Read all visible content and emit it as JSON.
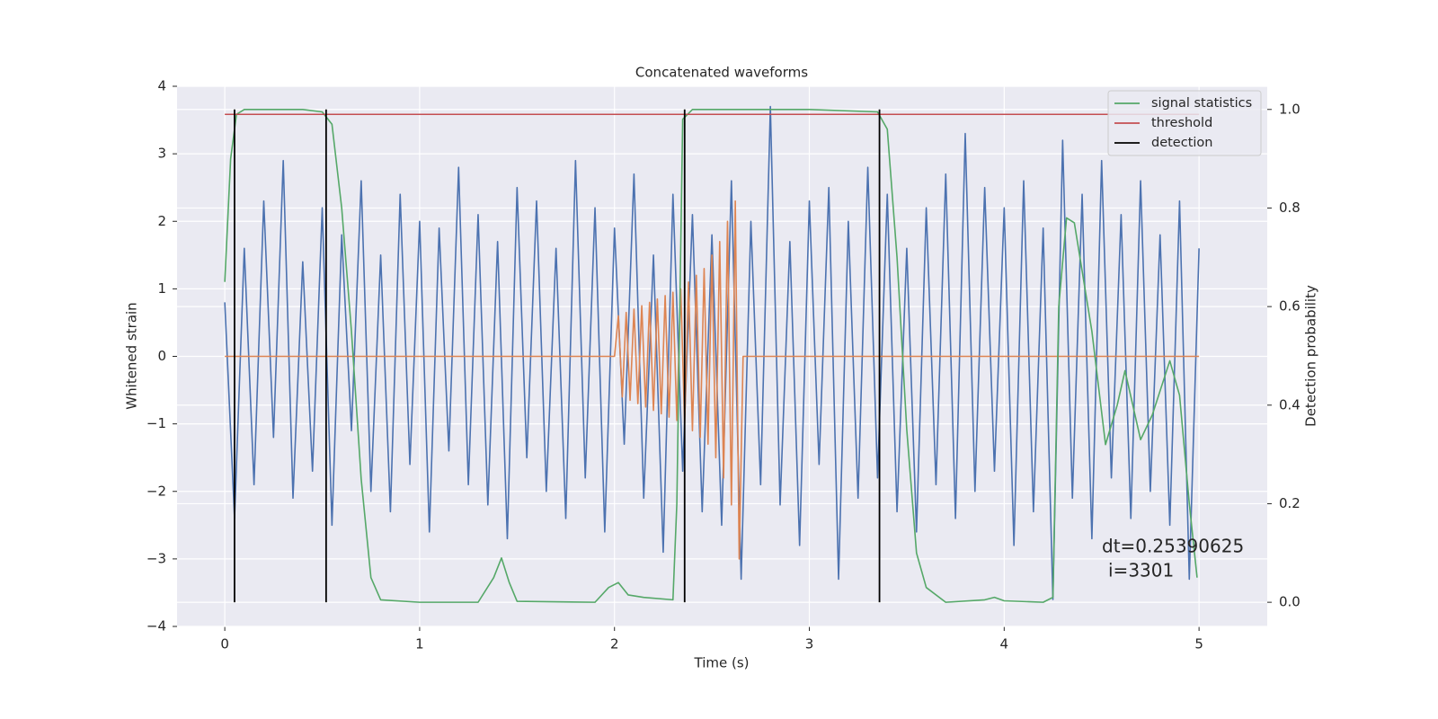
{
  "chart_data": {
    "type": "line",
    "title": "Concatenated waveforms",
    "xlabel": "Time (s)",
    "ylabel": "Whitened strain",
    "y2label": "Detection probability",
    "xlim": [
      -0.245,
      5.35
    ],
    "ylim": [
      -4.0,
      4.0
    ],
    "y2lim": [
      -0.049,
      1.047
    ],
    "xticks": [
      0,
      1,
      2,
      3,
      4,
      5
    ],
    "yticks": [
      {
        "value": -4,
        "label": "−4"
      },
      {
        "value": -3,
        "label": "−3"
      },
      {
        "value": -2,
        "label": "−2"
      },
      {
        "value": -1,
        "label": "−1"
      },
      0,
      1,
      2,
      3,
      4
    ],
    "y2ticks": [
      {
        "value": 0,
        "label": "0.0"
      },
      0.2,
      0.4,
      0.6,
      0.8,
      {
        "value": 1,
        "label": "1.0"
      }
    ],
    "grid": true,
    "legend": "upper right",
    "annotations": [
      "dt=0.25390625",
      "i=3301"
    ],
    "series": [
      {
        "color": "#4c72b0",
        "x": [
          0,
          0.05,
          0.1,
          0.15,
          0.2,
          0.25,
          0.3,
          0.35,
          0.4,
          0.45,
          0.5,
          0.55,
          0.6,
          0.65,
          0.7,
          0.75,
          0.8,
          0.85,
          0.9,
          0.95,
          1.0,
          1.05,
          1.1,
          1.15,
          1.2,
          1.25,
          1.3,
          1.35,
          1.4,
          1.45,
          1.5,
          1.55,
          1.6,
          1.65,
          1.7,
          1.75,
          1.8,
          1.85,
          1.9,
          1.95,
          2.0,
          2.05,
          2.1,
          2.15,
          2.2,
          2.25,
          2.3,
          2.35,
          2.4,
          2.45,
          2.5,
          2.55,
          2.6,
          2.65,
          2.7,
          2.75,
          2.8,
          2.85,
          2.9,
          2.95,
          3.0,
          3.05,
          3.1,
          3.15,
          3.2,
          3.25,
          3.3,
          3.35,
          3.4,
          3.45,
          3.5,
          3.55,
          3.6,
          3.65,
          3.7,
          3.75,
          3.8,
          3.85,
          3.9,
          3.95,
          4.0,
          4.05,
          4.1,
          4.15,
          4.2,
          4.25,
          4.3,
          4.35,
          4.4,
          4.45,
          4.5,
          4.55,
          4.6,
          4.65,
          4.7,
          4.75,
          4.8,
          4.85,
          4.9,
          4.95,
          5.0
        ],
        "values": [
          0.8,
          -2.4,
          1.6,
          -1.9,
          2.3,
          -1.2,
          2.9,
          -2.1,
          1.4,
          -1.7,
          2.2,
          -2.5,
          1.8,
          -1.1,
          2.6,
          -2.0,
          1.5,
          -2.3,
          2.4,
          -1.6,
          2.0,
          -2.6,
          1.9,
          -1.4,
          2.8,
          -1.9,
          2.1,
          -2.2,
          1.7,
          -2.7,
          2.5,
          -1.5,
          2.3,
          -2.0,
          1.6,
          -2.4,
          2.9,
          -1.8,
          2.2,
          -2.6,
          1.9,
          -1.3,
          2.7,
          -2.1,
          1.5,
          -2.9,
          2.4,
          -1.7,
          2.1,
          -2.3,
          1.8,
          -2.5,
          2.6,
          -3.3,
          2.0,
          -1.9,
          3.7,
          -2.2,
          1.7,
          -2.8,
          2.3,
          -1.6,
          2.5,
          -3.3,
          2.0,
          -2.1,
          2.8,
          -1.8,
          2.4,
          -2.3,
          1.6,
          -2.6,
          2.2,
          -1.9,
          2.7,
          -2.4,
          3.3,
          -2.0,
          2.5,
          -1.7,
          2.2,
          -2.8,
          2.6,
          -2.3,
          1.9,
          -3.6,
          3.2,
          -2.1,
          2.4,
          -2.7,
          2.9,
          -1.8,
          2.1,
          -2.4,
          2.6,
          -2.0,
          1.8,
          -2.5,
          2.3,
          -3.3,
          1.6
        ]
      },
      {
        "color": "#dd8452",
        "x": [
          0,
          2.0,
          2.02,
          2.04,
          2.06,
          2.08,
          2.1,
          2.12,
          2.14,
          2.16,
          2.18,
          2.2,
          2.22,
          2.24,
          2.26,
          2.28,
          2.3,
          2.32,
          2.34,
          2.36,
          2.38,
          2.4,
          2.42,
          2.44,
          2.46,
          2.48,
          2.5,
          2.52,
          2.54,
          2.56,
          2.58,
          2.6,
          2.62,
          2.64,
          2.66,
          5
        ],
        "values": [
          0,
          0,
          0.6,
          -0.6,
          0.65,
          -0.65,
          0.7,
          -0.7,
          0.75,
          -0.75,
          0.8,
          -0.8,
          0.85,
          -0.85,
          0.9,
          -0.9,
          0.95,
          -0.95,
          1.0,
          -1.0,
          1.1,
          -1.1,
          1.2,
          -1.2,
          1.3,
          -1.3,
          1.5,
          -1.5,
          1.7,
          -1.8,
          2.0,
          -2.2,
          2.3,
          -3.0,
          0,
          0
        ]
      },
      {
        "name": "signal statistics",
        "color": "#55a868",
        "axis": "y2",
        "x": [
          0,
          0.03,
          0.06,
          0.1,
          0.2,
          0.4,
          0.5,
          0.55,
          0.6,
          0.65,
          0.7,
          0.75,
          0.8,
          1.0,
          1.3,
          1.38,
          1.42,
          1.46,
          1.5,
          1.9,
          1.97,
          2.02,
          2.07,
          2.15,
          2.3,
          2.32,
          2.35,
          2.4,
          2.6,
          3.0,
          3.35,
          3.4,
          3.45,
          3.5,
          3.55,
          3.6,
          3.7,
          3.9,
          3.95,
          4.0,
          4.2,
          4.25,
          4.28,
          4.32,
          4.36,
          4.45,
          4.52,
          4.58,
          4.62,
          4.7,
          4.76,
          4.85,
          4.9,
          4.95,
          4.99
        ],
        "values": [
          0.65,
          0.9,
          0.99,
          1.0,
          1.0,
          1.0,
          0.995,
          0.97,
          0.8,
          0.55,
          0.25,
          0.05,
          0.005,
          0.0,
          0.0,
          0.05,
          0.09,
          0.04,
          0.002,
          0.0,
          0.03,
          0.04,
          0.015,
          0.01,
          0.005,
          0.2,
          0.98,
          1.0,
          1.0,
          1.0,
          0.995,
          0.96,
          0.7,
          0.35,
          0.1,
          0.03,
          0.0,
          0.005,
          0.01,
          0.003,
          0.0,
          0.01,
          0.6,
          0.78,
          0.77,
          0.55,
          0.32,
          0.4,
          0.47,
          0.33,
          0.38,
          0.49,
          0.42,
          0.2,
          0.05
        ]
      },
      {
        "name": "threshold",
        "color": "#c44e52",
        "axis": "y2",
        "x": [
          0,
          5
        ],
        "values": [
          0.99,
          0.99
        ]
      },
      {
        "name": "detection",
        "color": "#000000",
        "axis": "y2",
        "type": "vlines",
        "x": [
          0.05,
          0.52,
          2.36,
          3.36
        ],
        "ymin": 0,
        "ymax": 1
      }
    ]
  }
}
